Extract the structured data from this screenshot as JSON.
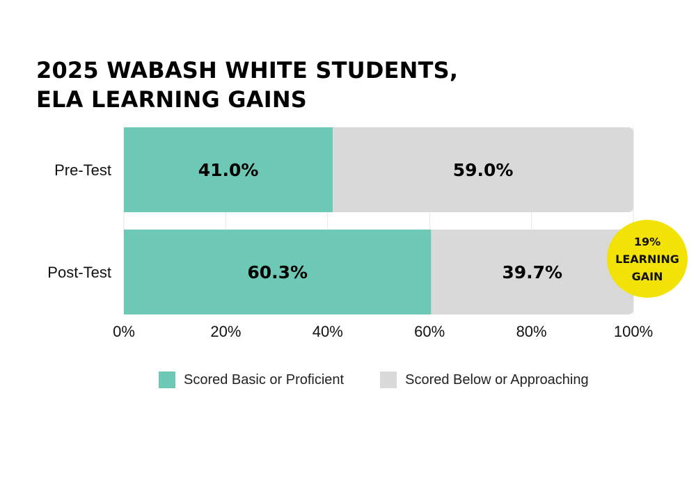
{
  "title_lines": [
    "2025 WABASH WHITE STUDENTS,",
    "ELA LEARNING GAINS"
  ],
  "colors": {
    "basic_or_proficient": "#6ec8b6",
    "below_or_approaching": "#d9d9d9",
    "badge": "#f3e205",
    "grid": "#e6e6e6"
  },
  "badge": {
    "lines": [
      "19%",
      "LEARNING",
      "GAIN"
    ]
  },
  "chart_data": {
    "type": "bar",
    "orientation": "horizontal",
    "stacked": true,
    "title": "2025 WABASH WHITE STUDENTS, ELA LEARNING GAINS",
    "categories": [
      "Pre-Test",
      "Post-Test"
    ],
    "series": [
      {
        "name": "Scored Basic or Proficient",
        "values": [
          41.0,
          60.3
        ],
        "labels": [
          "41.0%",
          "60.3%"
        ],
        "color": "#6ec8b6"
      },
      {
        "name": "Scored Below or Approaching",
        "values": [
          59.0,
          39.7
        ],
        "labels": [
          "59.0%",
          "39.7%"
        ],
        "color": "#d9d9d9"
      }
    ],
    "xlim": [
      0,
      100
    ],
    "xticks": [
      0,
      20,
      40,
      60,
      80,
      100
    ],
    "xtick_labels": [
      "0%",
      "20%",
      "40%",
      "60%",
      "80%",
      "100%"
    ],
    "grid": true,
    "legend_position": "bottom"
  }
}
